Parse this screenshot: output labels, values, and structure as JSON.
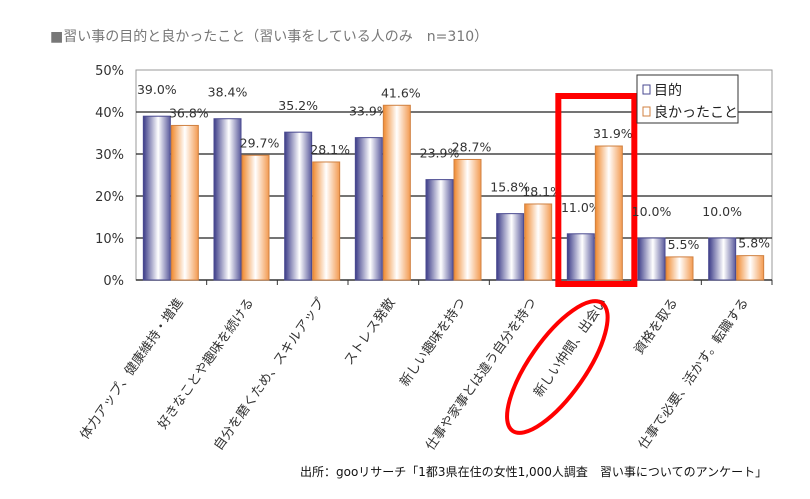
{
  "chart_data": {
    "type": "bar",
    "title": "■習い事の目的と良かったこと（習い事をしている人のみ　n=310）",
    "source": "出所：gooリサーチ「1都3県在住の女性1,000人調査　習い事についてのアンケート」",
    "categories": [
      "体力アップ、健康維持・増進",
      "好きなことや趣味を続ける",
      "自分を磨くため、スキルアップ",
      "ストレス発散",
      "新しい趣味を持つ",
      "仕事や家事とは違う自分を持つ",
      "新しい仲間、出会い",
      "資格を取る",
      "仕事で必要、活かす。転職する"
    ],
    "series": [
      {
        "name": "目的",
        "values": [
          39.0,
          38.4,
          35.2,
          33.9,
          23.9,
          15.8,
          11.0,
          10.0,
          10.0
        ],
        "color": "#4a4a90"
      },
      {
        "name": "良かったこと",
        "values": [
          36.8,
          29.7,
          28.1,
          41.6,
          28.7,
          18.1,
          31.9,
          5.5,
          5.8
        ],
        "color": "#f0a060"
      }
    ],
    "ylim": [
      0,
      50
    ],
    "yticks": [
      "0%",
      "10%",
      "20%",
      "30%",
      "40%",
      "50%"
    ],
    "grid": true,
    "legend": "top-right",
    "highlight_category": "新しい仲間、出会い",
    "highlight_color": "#ff0000"
  }
}
